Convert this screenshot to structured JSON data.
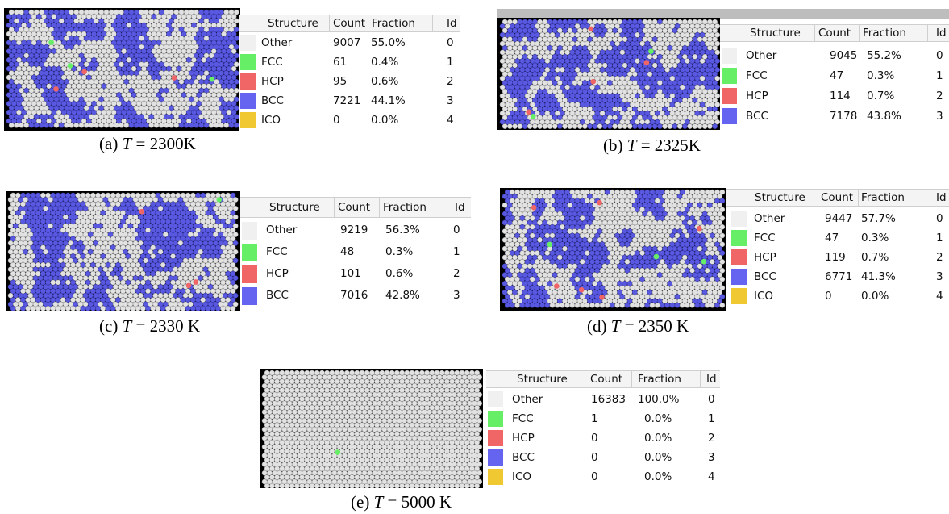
{
  "colors": {
    "other": "#f0f0f0",
    "fcc": "#66ee66",
    "hcp": "#f06565",
    "bcc": "#6464f0",
    "ico": "#f0c832",
    "atom_white": "#e2e2e2",
    "atom_bcc": "#5858e0",
    "frame": "#000000"
  },
  "headers": {
    "structure": "Structure",
    "count": "Count",
    "fraction": "Fraction",
    "id": "Id"
  },
  "panels": [
    {
      "caption_prefix": "(a)",
      "caption_var": "T",
      "caption_eq": "=",
      "caption_value": "2300K",
      "rows": [
        {
          "structure": "Other",
          "count": "9007",
          "fraction": "55.0%",
          "id": "0"
        },
        {
          "structure": "FCC",
          "count": "61",
          "fraction": "0.4%",
          "id": "1"
        },
        {
          "structure": "HCP",
          "count": "95",
          "fraction": "0.6%",
          "id": "2"
        },
        {
          "structure": "BCC",
          "count": "7221",
          "fraction": "44.1%",
          "id": "3"
        },
        {
          "structure": "ICO",
          "count": "0",
          "fraction": "0.0%",
          "id": "4"
        }
      ]
    },
    {
      "caption_prefix": "(b)",
      "caption_var": "T",
      "caption_eq": "=",
      "caption_value": "2325K",
      "rows": [
        {
          "structure": "Other",
          "count": "9045",
          "fraction": "55.2%",
          "id": "0"
        },
        {
          "structure": "FCC",
          "count": "47",
          "fraction": "0.3%",
          "id": "1"
        },
        {
          "structure": "HCP",
          "count": "114",
          "fraction": "0.7%",
          "id": "2"
        },
        {
          "structure": "BCC",
          "count": "7178",
          "fraction": "43.8%",
          "id": "3"
        }
      ]
    },
    {
      "caption_prefix": "(c)",
      "caption_var": "T",
      "caption_eq": "=",
      "caption_value": "2330 K",
      "rows": [
        {
          "structure": "Other",
          "count": "9219",
          "fraction": "56.3%",
          "id": "0"
        },
        {
          "structure": "FCC",
          "count": "48",
          "fraction": "0.3%",
          "id": "1"
        },
        {
          "structure": "HCP",
          "count": "101",
          "fraction": "0.6%",
          "id": "2"
        },
        {
          "structure": "BCC",
          "count": "7016",
          "fraction": "42.8%",
          "id": "3"
        }
      ]
    },
    {
      "caption_prefix": "(d)",
      "caption_var": "T",
      "caption_eq": "=",
      "caption_value": "2350 K",
      "rows": [
        {
          "structure": "Other",
          "count": "9447",
          "fraction": "57.7%",
          "id": "0"
        },
        {
          "structure": "FCC",
          "count": "47",
          "fraction": "0.3%",
          "id": "1"
        },
        {
          "structure": "HCP",
          "count": "119",
          "fraction": "0.7%",
          "id": "2"
        },
        {
          "structure": "BCC",
          "count": "6771",
          "fraction": "41.3%",
          "id": "3"
        },
        {
          "structure": "ICO",
          "count": "0",
          "fraction": "0.0%",
          "id": "4"
        }
      ]
    },
    {
      "caption_prefix": "(e)",
      "caption_var": "T",
      "caption_eq": "=",
      "caption_value": "5000 K",
      "rows": [
        {
          "structure": "Other",
          "count": "16383",
          "fraction": "100.0%",
          "id": "0"
        },
        {
          "structure": "FCC",
          "count": "1",
          "fraction": "0.0%",
          "id": "1"
        },
        {
          "structure": "HCP",
          "count": "0",
          "fraction": "0.0%",
          "id": "2"
        },
        {
          "structure": "BCC",
          "count": "0",
          "fraction": "0.0%",
          "id": "3"
        },
        {
          "structure": "ICO",
          "count": "0",
          "fraction": "0.0%",
          "id": "4"
        }
      ]
    }
  ]
}
